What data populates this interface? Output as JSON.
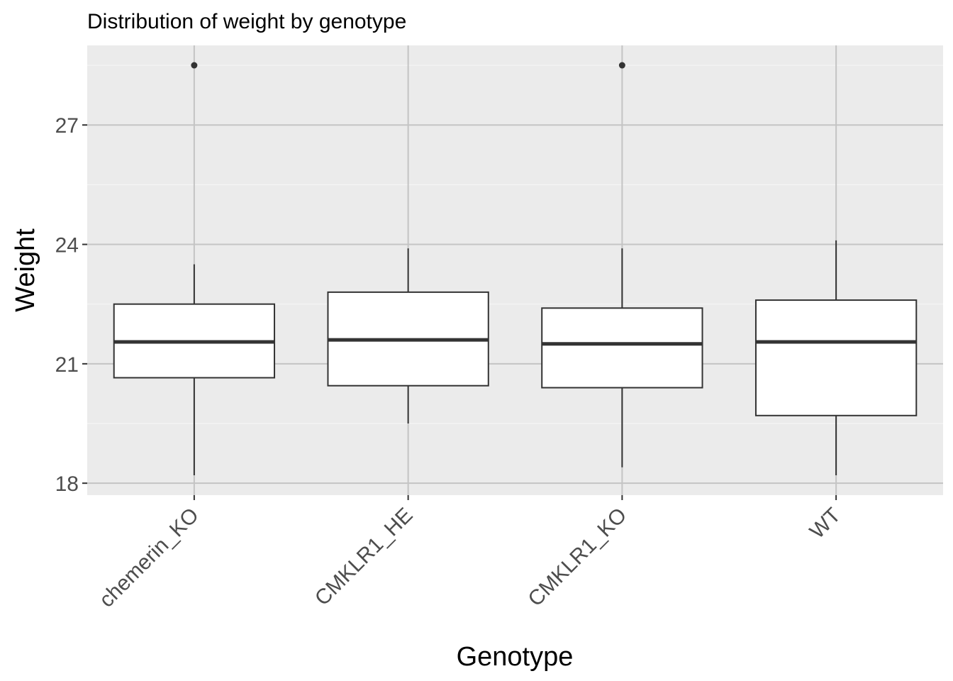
{
  "chart_data": {
    "type": "box",
    "title": "Distribution of weight by genotype",
    "xlabel": "Genotype",
    "ylabel": "Weight",
    "ylim": [
      17.7,
      29.0
    ],
    "yticks": [
      18,
      21,
      24,
      27
    ],
    "ytick_labels": [
      "18",
      "21",
      "24",
      "27"
    ],
    "categories": [
      "chemerin_KO",
      "CMKLR1_HE",
      "CMKLR1_KO",
      "WT"
    ],
    "boxes": [
      {
        "category": "chemerin_KO",
        "whisker_low": 18.2,
        "q1": 20.65,
        "median": 21.55,
        "q3": 22.5,
        "whisker_high": 23.5,
        "outliers": [
          28.5
        ]
      },
      {
        "category": "CMKLR1_HE",
        "whisker_low": 19.5,
        "q1": 20.45,
        "median": 21.6,
        "q3": 22.8,
        "whisker_high": 23.9,
        "outliers": []
      },
      {
        "category": "CMKLR1_KO",
        "whisker_low": 18.4,
        "q1": 20.4,
        "median": 21.5,
        "q3": 22.4,
        "whisker_high": 23.9,
        "outliers": [
          28.5
        ]
      },
      {
        "category": "WT",
        "whisker_low": 18.2,
        "q1": 19.7,
        "median": 21.55,
        "q3": 22.6,
        "whisker_high": 24.1,
        "outliers": []
      }
    ],
    "grid": true,
    "legend": "none",
    "colors": {
      "panel_background": "#ebebeb",
      "major_grid": "#c4c4c4",
      "minor_grid": "#f5f5f5",
      "box_fill": "#ffffff",
      "box_line": "#333333",
      "tick_label": "#4d4d4d"
    }
  }
}
